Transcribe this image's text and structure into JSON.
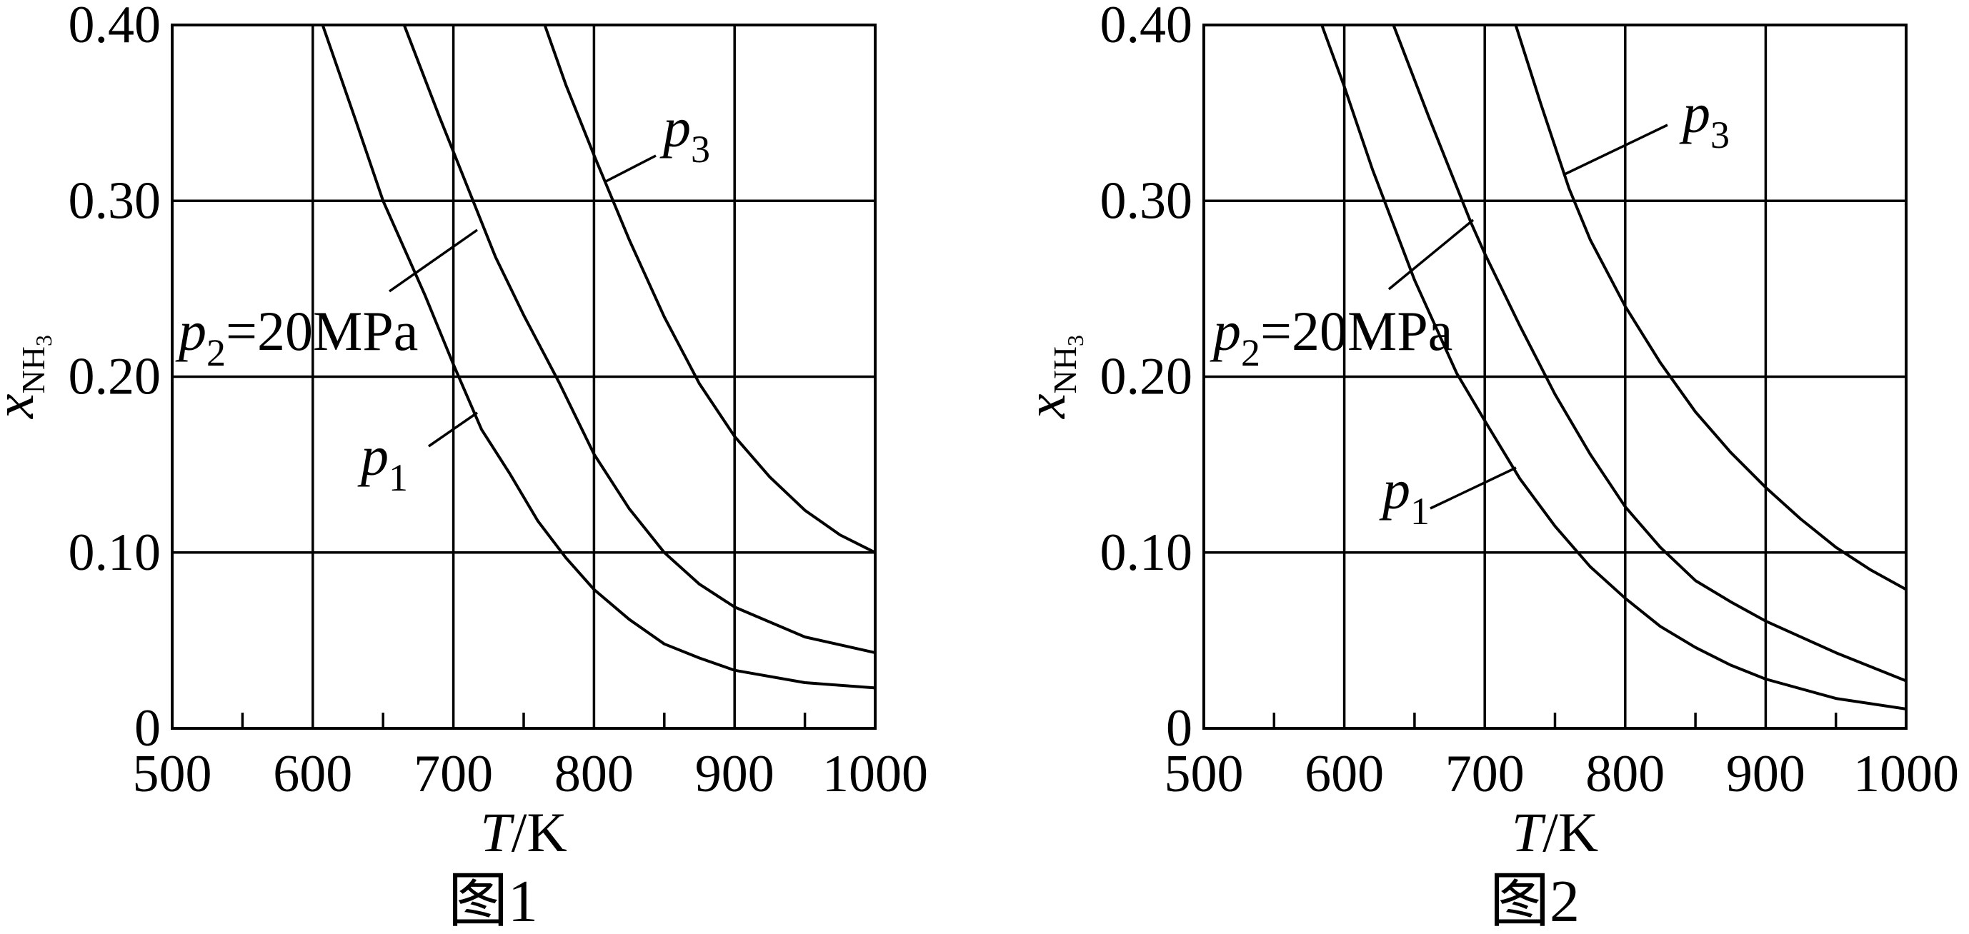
{
  "chart_data": [
    {
      "type": "line",
      "caption": "图1",
      "xlabel_var": "T",
      "xlabel_unit": "/K",
      "ylabel_var": "x",
      "ylabel_sub": "NH",
      "ylabel_subsub": "3",
      "xlim": [
        500,
        1000
      ],
      "ylim": [
        0,
        0.4
      ],
      "x_ticks": [
        "500",
        "600",
        "700",
        "800",
        "900",
        "1000"
      ],
      "y_ticks": [
        "0",
        "0.10",
        "0.20",
        "0.30",
        "0.40"
      ],
      "grid": true,
      "series": [
        {
          "name": "p1",
          "label_main": "p",
          "label_sub": "1",
          "label_rest": "",
          "points": [
            [
              607,
              0.4
            ],
            [
              630,
              0.347
            ],
            [
              650,
              0.3
            ],
            [
              680,
              0.246
            ],
            [
              700,
              0.207
            ],
            [
              720,
              0.17
            ],
            [
              740,
              0.145
            ],
            [
              760,
              0.118
            ],
            [
              780,
              0.097
            ],
            [
              800,
              0.079
            ],
            [
              825,
              0.062
            ],
            [
              850,
              0.048
            ],
            [
              875,
              0.04
            ],
            [
              900,
              0.033
            ],
            [
              950,
              0.026
            ],
            [
              1000,
              0.023
            ]
          ]
        },
        {
          "name": "p2",
          "label_main": "p",
          "label_sub": "2",
          "label_rest": "=20MPa",
          "points": [
            [
              665,
              0.4
            ],
            [
              690,
              0.348
            ],
            [
              705,
              0.318
            ],
            [
              730,
              0.268
            ],
            [
              750,
              0.235
            ],
            [
              775,
              0.197
            ],
            [
              800,
              0.156
            ],
            [
              825,
              0.125
            ],
            [
              850,
              0.1
            ],
            [
              875,
              0.082
            ],
            [
              900,
              0.069
            ],
            [
              950,
              0.052
            ],
            [
              1000,
              0.043
            ]
          ]
        },
        {
          "name": "p3",
          "label_main": "p",
          "label_sub": "3",
          "label_rest": "",
          "points": [
            [
              765,
              0.4
            ],
            [
              780,
              0.366
            ],
            [
              800,
              0.326
            ],
            [
              825,
              0.278
            ],
            [
              850,
              0.234
            ],
            [
              875,
              0.196
            ],
            [
              900,
              0.166
            ],
            [
              925,
              0.143
            ],
            [
              950,
              0.124
            ],
            [
              975,
              0.11
            ],
            [
              1000,
              0.1
            ]
          ]
        }
      ],
      "annotations": [
        {
          "series": "p1",
          "from": [
            760,
            0.183
          ],
          "to": [
            720,
            0.182
          ],
          "text_at": [
            680,
            0.15
          ]
        }
      ]
    },
    {
      "type": "line",
      "caption": "图2",
      "xlabel_var": "T",
      "xlabel_unit": "/K",
      "ylabel_var": "x",
      "ylabel_sub": "NH",
      "ylabel_subsub": "3",
      "xlim": [
        500,
        1000
      ],
      "ylim": [
        0,
        0.4
      ],
      "x_ticks": [
        "500",
        "600",
        "700",
        "800",
        "900",
        "1000"
      ],
      "y_ticks": [
        "0",
        "0.10",
        "0.20",
        "0.30",
        "0.40"
      ],
      "grid": true,
      "series": [
        {
          "name": "p1",
          "label_main": "p",
          "label_sub": "1",
          "label_rest": "",
          "points": [
            [
              584,
              0.4
            ],
            [
              600,
              0.365
            ],
            [
              620,
              0.318
            ],
            [
              650,
              0.255
            ],
            [
              680,
              0.202
            ],
            [
              700,
              0.175
            ],
            [
              725,
              0.142
            ],
            [
              750,
              0.115
            ],
            [
              775,
              0.092
            ],
            [
              800,
              0.074
            ],
            [
              825,
              0.058
            ],
            [
              850,
              0.046
            ],
            [
              875,
              0.036
            ],
            [
              900,
              0.028
            ],
            [
              950,
              0.017
            ],
            [
              1000,
              0.011
            ]
          ]
        },
        {
          "name": "p2",
          "label_main": "p",
          "label_sub": "2",
          "label_rest": "=20MPa",
          "points": [
            [
              635,
              0.4
            ],
            [
              660,
              0.348
            ],
            [
              690,
              0.288
            ],
            [
              700,
              0.27
            ],
            [
              725,
              0.229
            ],
            [
              750,
              0.19
            ],
            [
              775,
              0.156
            ],
            [
              800,
              0.126
            ],
            [
              825,
              0.103
            ],
            [
              850,
              0.084
            ],
            [
              875,
              0.072
            ],
            [
              900,
              0.061
            ],
            [
              950,
              0.043
            ],
            [
              1000,
              0.027
            ]
          ]
        },
        {
          "name": "p3",
          "label_main": "p",
          "label_sub": "3",
          "label_rest": "",
          "points": [
            [
              722,
              0.4
            ],
            [
              740,
              0.355
            ],
            [
              760,
              0.307
            ],
            [
              775,
              0.278
            ],
            [
              800,
              0.24
            ],
            [
              825,
              0.208
            ],
            [
              850,
              0.18
            ],
            [
              875,
              0.157
            ],
            [
              900,
              0.137
            ],
            [
              925,
              0.119
            ],
            [
              950,
              0.103
            ],
            [
              975,
              0.09
            ],
            [
              1000,
              0.079
            ]
          ]
        }
      ]
    }
  ]
}
